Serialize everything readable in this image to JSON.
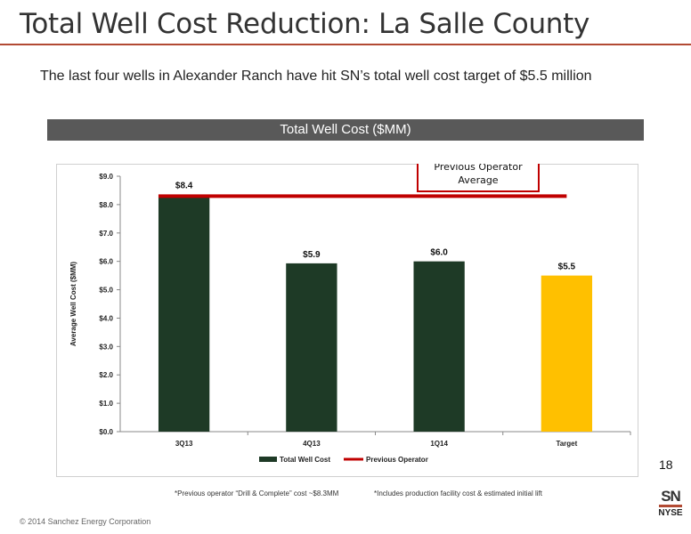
{
  "page": {
    "title": "Total Well Cost Reduction: La Salle County",
    "subtitle": "The last four wells in Alexander Ranch have hit SN’s total well cost target of $5.5 million",
    "slide_number": "18",
    "footnote_left": "*Previous operator “Drill & Complete” cost ~$8.3MM",
    "footnote_right": "*Includes production facility cost & estimated initial lift",
    "copyright": "© 2014 Sanchez Energy Corporation",
    "logo_text": "SN",
    "logo_exchange": "NYSE"
  },
  "chart_data": {
    "type": "bar",
    "title": "Total Well Cost ($MM)",
    "categories": [
      "3Q13",
      "4Q13",
      "1Q14",
      "Target"
    ],
    "series": [
      {
        "name": "Total Well Cost",
        "values": [
          8.35,
          5.93,
          6.0,
          5.5
        ],
        "color": "#1e3a26"
      }
    ],
    "highlight": {
      "category": "Target",
      "color": "#ffc000"
    },
    "data_labels": [
      "$8.4",
      "$5.9",
      "$6.0",
      "$5.5"
    ],
    "reference_line": {
      "name": "Previous Operator",
      "value": 8.3,
      "color": "#c00000",
      "span": [
        "3Q13",
        "Target"
      ]
    },
    "callout": {
      "lines": [
        "Previous Operator",
        "Average"
      ],
      "border_color": "#c00000"
    },
    "ylabel": "Average Well Cost ($MM)",
    "xlabel": "",
    "ylim": [
      0,
      9
    ],
    "yticks": [
      0,
      1,
      2,
      3,
      4,
      5,
      6,
      7,
      8,
      9
    ],
    "ytick_labels": [
      "$0.0",
      "$1.0",
      "$2.0",
      "$3.0",
      "$4.0",
      "$5.0",
      "$6.0",
      "$7.0",
      "$8.0",
      "$9.0"
    ],
    "grid": false,
    "legend": {
      "placement": "bottom",
      "entries": [
        "Total Well Cost",
        "Previous Operator"
      ]
    }
  }
}
